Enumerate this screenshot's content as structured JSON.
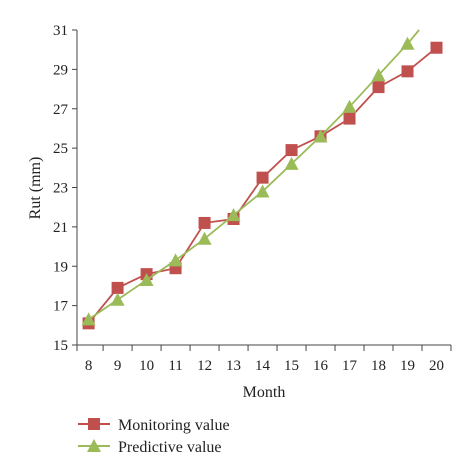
{
  "chart_data": {
    "type": "line",
    "xlabel": "Month",
    "ylabel": "Rut (mm)",
    "x_ticks": [
      "8",
      "9",
      "10",
      "11",
      "12",
      "13",
      "14",
      "15",
      "16",
      "17",
      "18",
      "19",
      "20"
    ],
    "y_ticks": [
      "15",
      "17",
      "19",
      "21",
      "23",
      "25",
      "27",
      "29",
      "31"
    ],
    "xlim": [
      7.6,
      20.5
    ],
    "ylim": [
      15,
      31
    ],
    "grid": false,
    "legend_position": "bottom-left",
    "series": [
      {
        "name": "Monitoring value",
        "color": "#c0504d",
        "marker": "square",
        "x": [
          8,
          9,
          10,
          11,
          12,
          13,
          14,
          15,
          16,
          17,
          18,
          19,
          20
        ],
        "y": [
          16.1,
          17.9,
          18.6,
          18.9,
          21.2,
          21.4,
          23.5,
          24.9,
          25.6,
          26.5,
          28.1,
          28.9,
          30.1
        ]
      },
      {
        "name": "Predictive value",
        "color": "#9bbb59",
        "marker": "triangle",
        "x": [
          8,
          9,
          10,
          11,
          12,
          13,
          14,
          15,
          16,
          17,
          18,
          19
        ],
        "y": [
          16.3,
          17.3,
          18.3,
          19.3,
          20.4,
          21.6,
          22.8,
          24.2,
          25.6,
          27.1,
          28.7,
          30.3
        ],
        "line_extends_to": {
          "x": 19.4,
          "y": 31
        }
      }
    ]
  }
}
